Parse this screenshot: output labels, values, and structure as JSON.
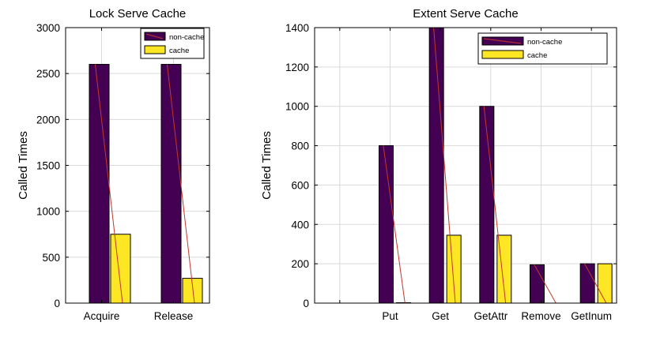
{
  "chart_data": [
    {
      "type": "bar",
      "title": "Lock Serve Cache",
      "ylabel": "Called Times",
      "xlabel": "",
      "categories": [
        "Acquire",
        "Release"
      ],
      "series": [
        {
          "name": "non-cache",
          "values": [
            2600,
            2600
          ],
          "color": "#440154"
        },
        {
          "name": "cache",
          "values": [
            750,
            270
          ],
          "color": "#fde725"
        }
      ],
      "ylim": [
        0,
        3000
      ],
      "yticks": [
        0,
        500,
        1000,
        1500,
        2000,
        2500,
        3000
      ],
      "grid": true,
      "legend": "top-right"
    },
    {
      "type": "bar",
      "title": "Extent Serve Cache",
      "ylabel": "Called Times",
      "xlabel": "",
      "categories": [
        "",
        "Put",
        "Get",
        "GetAttr",
        "Remove",
        "GetInum"
      ],
      "series": [
        {
          "name": "non-cache",
          "values": [
            0,
            800,
            1400,
            1000,
            195,
            200
          ],
          "color": "#440154"
        },
        {
          "name": "cache",
          "values": [
            0,
            2,
            345,
            345,
            0,
            200
          ],
          "color": "#fde725"
        }
      ],
      "ylim": [
        0,
        1400
      ],
      "yticks": [
        0,
        200,
        400,
        600,
        800,
        1000,
        1200,
        1400
      ],
      "grid": true,
      "legend": "top-right"
    }
  ]
}
